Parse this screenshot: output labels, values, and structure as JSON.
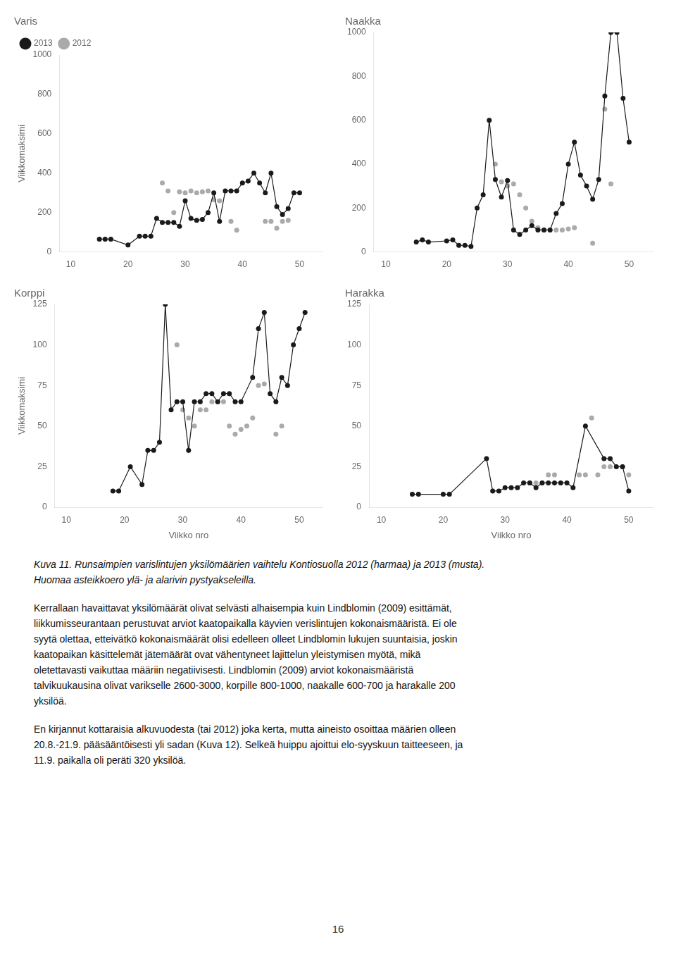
{
  "chart_data": [
    {
      "type": "line",
      "title": "Varis",
      "ylabel": "Viikkomaksimi",
      "xlim": [
        8,
        54
      ],
      "xticks": [
        10,
        20,
        30,
        40,
        50
      ],
      "ylim": [
        0,
        1000
      ],
      "yticks": [
        0,
        200,
        400,
        600,
        800,
        1000
      ],
      "grid": false,
      "legend": "upper left",
      "series": [
        {
          "name": "2012",
          "type": "scatter",
          "color": "#aaaaaa",
          "marker": "circle",
          "x": [
            26,
            27,
            28,
            29,
            30,
            31,
            32,
            33,
            34,
            35,
            36,
            38,
            39,
            44,
            45,
            46,
            47,
            48
          ],
          "values": [
            350,
            310,
            200,
            305,
            300,
            310,
            300,
            305,
            310,
            265,
            260,
            155,
            110,
            155,
            155,
            120,
            155,
            160
          ]
        },
        {
          "name": "2013",
          "type": "line",
          "color": "#1a1a1a",
          "marker": "circle",
          "line_style": "solid",
          "x": [
            15,
            16,
            17,
            20,
            22,
            23,
            24,
            25,
            26,
            27,
            28,
            29,
            30,
            31,
            32,
            33,
            34,
            35,
            36,
            37,
            38,
            39,
            40,
            41,
            42,
            43,
            44,
            45,
            46,
            47,
            48,
            49,
            50
          ],
          "values": [
            65,
            65,
            65,
            35,
            80,
            80,
            80,
            170,
            150,
            150,
            150,
            130,
            260,
            170,
            160,
            165,
            200,
            300,
            155,
            310,
            310,
            310,
            350,
            360,
            400,
            350,
            300,
            400,
            230,
            190,
            220,
            300,
            300
          ]
        }
      ]
    },
    {
      "type": "line",
      "title": "Naakka",
      "xlim": [
        8,
        54
      ],
      "xticks": [
        10,
        20,
        30,
        40,
        50
      ],
      "ylim": [
        0,
        1000
      ],
      "yticks": [
        0,
        200,
        400,
        600,
        800,
        1000
      ],
      "grid": false,
      "legend": false,
      "series": [
        {
          "name": "2012",
          "type": "scatter",
          "color": "#aaaaaa",
          "marker": "circle",
          "x": [
            28,
            29,
            30,
            31,
            32,
            33,
            34,
            35,
            36,
            37,
            38,
            39,
            40,
            41,
            44,
            46,
            47
          ],
          "values": [
            400,
            320,
            300,
            310,
            260,
            200,
            140,
            110,
            100,
            100,
            100,
            100,
            105,
            110,
            40,
            650,
            310
          ]
        },
        {
          "name": "2013",
          "type": "line",
          "color": "#1a1a1a",
          "marker": "circle",
          "line_style": "solid",
          "x": [
            15,
            16,
            17,
            20,
            21,
            22,
            23,
            24,
            25,
            26,
            27,
            28,
            29,
            30,
            31,
            32,
            33,
            34,
            35,
            36,
            37,
            38,
            39,
            40,
            41,
            42,
            43,
            44,
            45,
            46,
            47,
            48,
            49,
            50
          ],
          "values": [
            45,
            55,
            45,
            50,
            55,
            30,
            30,
            25,
            200,
            260,
            600,
            330,
            250,
            325,
            100,
            80,
            100,
            120,
            100,
            100,
            100,
            175,
            220,
            400,
            500,
            350,
            300,
            240,
            330,
            710,
            1000,
            1000,
            700,
            500
          ]
        }
      ]
    },
    {
      "type": "line",
      "title": "Korppi",
      "ylabel": "Viikkomaksimi",
      "xlabel": "Viikko nro",
      "xlim": [
        8,
        54
      ],
      "xticks": [
        10,
        20,
        30,
        40,
        50
      ],
      "ylim": [
        0,
        125
      ],
      "yticks": [
        0,
        25,
        50,
        75,
        100,
        125
      ],
      "grid": false,
      "legend": false,
      "series": [
        {
          "name": "2012",
          "type": "scatter",
          "color": "#aaaaaa",
          "marker": "circle",
          "x": [
            29,
            30,
            31,
            32,
            33,
            34,
            35,
            36,
            37,
            38,
            39,
            40,
            41,
            42,
            43,
            44,
            46,
            47
          ],
          "values": [
            100,
            60,
            55,
            50,
            60,
            60,
            65,
            65,
            65,
            50,
            45,
            48,
            50,
            55,
            75,
            76,
            45,
            50
          ]
        },
        {
          "name": "2013",
          "type": "line",
          "color": "#1a1a1a",
          "marker": "circle",
          "line_style": "solid",
          "x": [
            18,
            19,
            21,
            23,
            24,
            25,
            26,
            27,
            28,
            29,
            30,
            31,
            32,
            33,
            34,
            35,
            36,
            37,
            38,
            39,
            40,
            42,
            43,
            44,
            45,
            46,
            47,
            48,
            49,
            50,
            51
          ],
          "values": [
            10,
            10,
            25,
            14,
            35,
            35,
            40,
            125,
            60,
            65,
            65,
            35,
            65,
            65,
            70,
            70,
            65,
            70,
            70,
            65,
            65,
            80,
            110,
            120,
            70,
            65,
            80,
            75,
            100,
            110,
            120
          ]
        }
      ]
    },
    {
      "type": "line",
      "title": "Harakka",
      "xlabel": "Viikko nro",
      "xlim": [
        8,
        54
      ],
      "xticks": [
        10,
        20,
        30,
        40,
        50
      ],
      "ylim": [
        0,
        125
      ],
      "yticks": [
        0,
        25,
        50,
        75,
        100,
        125
      ],
      "grid": false,
      "legend": false,
      "series": [
        {
          "name": "2012",
          "type": "scatter",
          "color": "#aaaaaa",
          "marker": "circle",
          "x": [
            34,
            35,
            36,
            37,
            38,
            42,
            43,
            44,
            45,
            46,
            47,
            49,
            50
          ],
          "values": [
            15,
            15,
            15,
            20,
            20,
            20,
            20,
            55,
            20,
            25,
            25,
            25,
            20
          ]
        },
        {
          "name": "2013",
          "type": "line",
          "color": "#1a1a1a",
          "marker": "circle",
          "line_style": "solid",
          "x": [
            15,
            16,
            20,
            21,
            27,
            28,
            29,
            30,
            31,
            32,
            33,
            34,
            35,
            36,
            37,
            38,
            39,
            40,
            41,
            43,
            46,
            47,
            48,
            49,
            50
          ],
          "values": [
            8,
            8,
            8,
            8,
            30,
            10,
            10,
            12,
            12,
            12,
            15,
            15,
            12,
            15,
            15,
            15,
            15,
            15,
            12,
            50,
            30,
            30,
            25,
            25,
            10
          ]
        }
      ]
    }
  ],
  "annotations": [
    [
      "Kuva 11. Runsaimpien varislintujen yksilömäärien vaihtelu Kontiosuolla 2012 (harmaa) ja 2013 (musta).",
      "Huomaa asteikkoero ylä- ja alarivin pystyakseleilla."
    ],
    [
      "Kerrallaan havaittavat yksilömäärät olivat selvästi alhaisempia kuin Lindblomin (2009) esittämät,",
      "liikkumisseurantaan perustuvat arviot kaatopaikalla käyvien verislintujen kokonaismääristä. Ei ole",
      "syytä olettaa, etteivätkö kokonaismäärät olisi edelleen olleet Lindblomin lukujen suuntaisia, joskin",
      "kaatopaikan käsittelemät jätemäärät ovat vähentyneet lajittelun yleistymisen myötä, mikä",
      "oletettavasti vaikuttaa määriin negatiivisesti. Lindblomin (2009) arviot kokonaismääristä",
      "talvikuukausina olivat varikselle 2600-3000, korpille 800-1000, naakalle 600-700 ja harakalle 200",
      "yksilöä."
    ],
    [
      "En kirjannut kottaraisia alkuvuodesta (tai 2012) joka kerta, mutta aineisto osoittaa määrien olleen",
      "20.8.-21.9. pääsääntöisesti yli sadan (Kuva 12). Selkeä huippu ajoittui elo-syyskuun taitteeseen, ja",
      "11.9. paikalla oli peräti 320 yksilöä."
    ],
    [
      "16"
    ]
  ]
}
